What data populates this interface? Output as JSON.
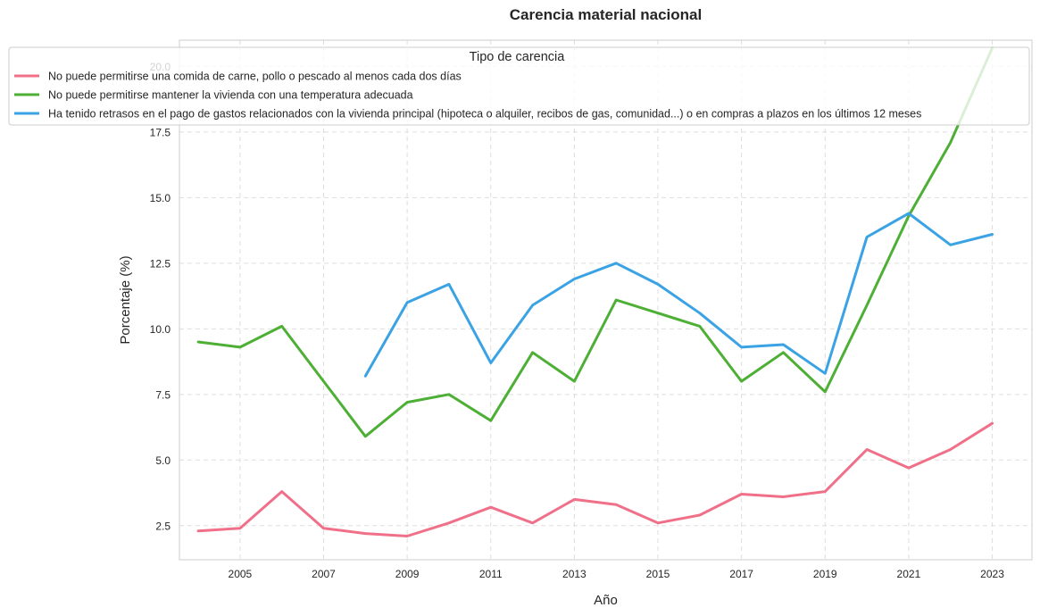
{
  "chart_data": {
    "type": "line",
    "title": "Carencia material nacional",
    "xlabel": "Año",
    "ylabel": "Porcentaje (%)",
    "x": [
      2004,
      2005,
      2006,
      2007,
      2008,
      2009,
      2010,
      2011,
      2012,
      2013,
      2014,
      2015,
      2016,
      2017,
      2018,
      2019,
      2020,
      2021,
      2022,
      2023
    ],
    "xticks": [
      "2005",
      "2007",
      "2009",
      "2011",
      "2013",
      "2015",
      "2017",
      "2019",
      "2021",
      "2023"
    ],
    "yticks": [
      "2.5",
      "5.0",
      "7.5",
      "10.0",
      "12.5",
      "15.0",
      "17.5",
      "20.0"
    ],
    "xlim": [
      2003.55,
      2023.95
    ],
    "ylim": [
      1.2,
      21.0
    ],
    "grid": true,
    "legend_title": "Tipo de carencia",
    "legend_position": "top-left",
    "series": [
      {
        "name": "No puede permitirse una comida de carne, pollo o pescado al menos cada dos días",
        "color": "#f07089",
        "values": [
          2.3,
          2.4,
          3.8,
          2.4,
          2.2,
          2.1,
          2.6,
          3.2,
          2.6,
          3.5,
          3.3,
          2.6,
          2.9,
          3.7,
          3.6,
          3.8,
          5.4,
          4.7,
          5.4,
          6.4
        ]
      },
      {
        "name": "No puede permitirse mantener la vivienda con una temperatura adecuada",
        "color": "#4daf35",
        "values": [
          9.5,
          9.3,
          10.1,
          8.0,
          5.9,
          7.2,
          7.5,
          6.5,
          9.1,
          8.0,
          11.1,
          10.6,
          10.1,
          8.0,
          9.1,
          7.6,
          10.9,
          14.3,
          17.1,
          20.7
        ]
      },
      {
        "name": "Ha tenido retrasos en el pago de gastos relacionados con la vivienda principal (hipoteca o alquiler, recibos de gas, comunidad...) o en compras a plazos en los últimos 12 meses",
        "color": "#3ba3e4",
        "values": [
          null,
          null,
          null,
          null,
          8.2,
          11.0,
          11.7,
          8.7,
          10.9,
          11.9,
          12.5,
          11.7,
          10.6,
          9.3,
          9.4,
          8.3,
          13.5,
          14.4,
          13.2,
          13.6
        ]
      }
    ]
  }
}
